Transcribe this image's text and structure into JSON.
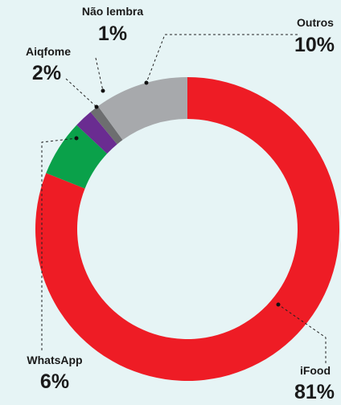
{
  "chart_data": {
    "type": "donut",
    "categories": [
      "iFood",
      "WhatsApp",
      "Aiqfome",
      "Não lembra",
      "Outros"
    ],
    "values": [
      81,
      6,
      2,
      1,
      10
    ],
    "value_labels": [
      "81%",
      "6%",
      "2%",
      "1%",
      "10%"
    ],
    "colors": [
      "#ee1c25",
      "#0aa14a",
      "#6a2c91",
      "#6d6e70",
      "#a7a9ac"
    ]
  }
}
